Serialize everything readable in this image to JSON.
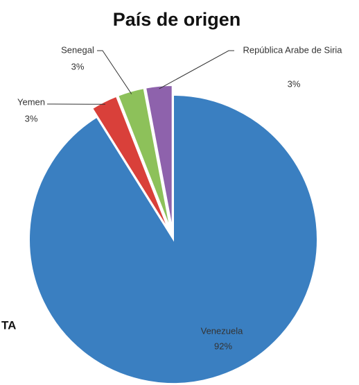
{
  "chart_data": {
    "type": "pie",
    "title": "País de origen",
    "categories": [
      "Venezuela",
      "Yemen",
      "Senegal",
      "República Arabe de Siria"
    ],
    "values": [
      92,
      3,
      3,
      3
    ],
    "value_labels": [
      "92%",
      "3%",
      "3%",
      "3%"
    ],
    "colors": [
      "#3a7fc1",
      "#d9403a",
      "#8dc15a",
      "#8e62ac"
    ],
    "annotation": "TA"
  }
}
